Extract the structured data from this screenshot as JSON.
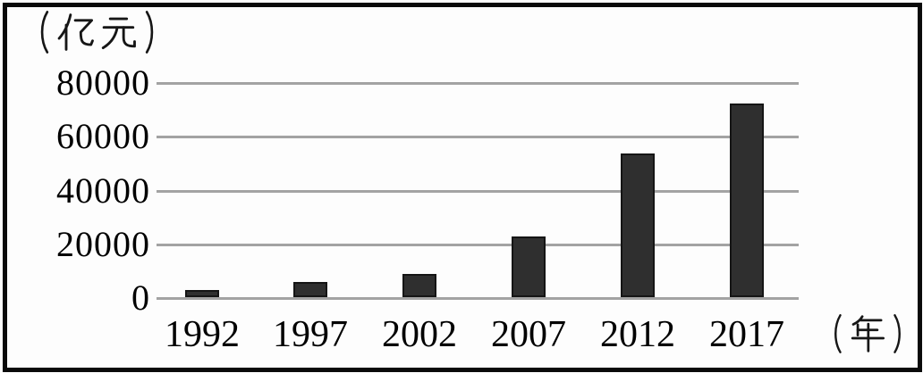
{
  "chart": {
    "y_unit_label": "（亿元）",
    "x_unit_label": "（年）"
  },
  "chart_data": {
    "type": "bar",
    "title": "",
    "categories": [
      "1992",
      "1997",
      "2002",
      "2007",
      "2012",
      "2017"
    ],
    "values": [
      2600,
      5800,
      8600,
      22500,
      53500,
      72000
    ],
    "xlabel": "年",
    "ylabel": "亿元",
    "ylim": [
      0,
      80000
    ],
    "yticks": [
      0,
      20000,
      40000,
      60000,
      80000
    ],
    "grid": true,
    "legend": "none",
    "bar_color": "#2f2f2f",
    "bar_border_color": "#151515",
    "gridline_color": "#a3a3a3",
    "text_color": "#000000"
  }
}
